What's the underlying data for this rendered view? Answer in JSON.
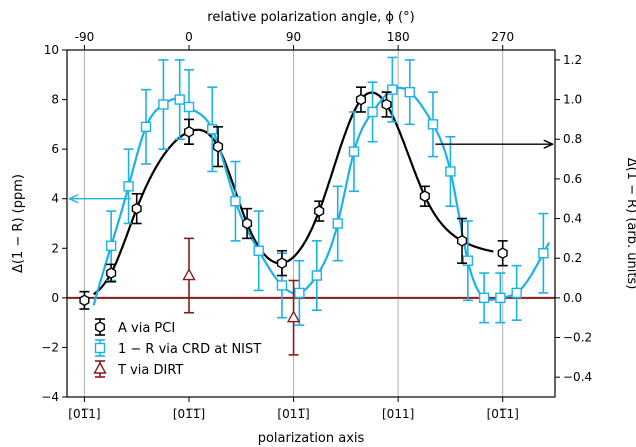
{
  "chart_data": {
    "type": "scatter",
    "title": "",
    "xlabel": "polarization axis",
    "ylabel": "Δ(1 − R) (ppm)",
    "ylabel_right": "Δ(1 − R) (arb. units)",
    "xlabel_top": "relative polarization angle, ϕ (°)",
    "xlim": [
      -105,
      315
    ],
    "ylim": [
      -4,
      10
    ],
    "ylim_right": [
      -0.5,
      1.25
    ],
    "grid": "vertical lines at x = -90, 90, 180, 270",
    "legend_position": "lower-left",
    "bottom_ticks": [
      {
        "x": -90,
        "label": "[01̅1]"
      },
      {
        "x": 0,
        "label": "[01̅1̅]"
      },
      {
        "x": 90,
        "label": "[011̅]"
      },
      {
        "x": 180,
        "label": "[011]"
      },
      {
        "x": 270,
        "label": "[01̅1]"
      }
    ],
    "top_ticks": [
      -90,
      0,
      90,
      180,
      270
    ],
    "left_ticks": [
      -4,
      -2,
      0,
      2,
      4,
      6,
      8,
      10
    ],
    "right_ticks": [
      -0.4,
      -0.2,
      0.0,
      0.2,
      0.4,
      0.6,
      0.8,
      1.0,
      1.2
    ],
    "series": [
      {
        "name": "A via PCI",
        "color": "#000000",
        "marker": "hexagon",
        "axis": "left",
        "x": [
          -90,
          -67,
          -45,
          0,
          25,
          50,
          80,
          112,
          148,
          170,
          203,
          235,
          270
        ],
        "y": [
          -0.1,
          1.0,
          3.6,
          6.7,
          6.1,
          3.0,
          1.4,
          3.5,
          8.0,
          7.8,
          4.1,
          2.3,
          1.8
        ],
        "yerr": [
          0.35,
          0.35,
          0.6,
          0.5,
          0.8,
          0.6,
          0.5,
          0.4,
          0.5,
          0.5,
          0.4,
          0.9,
          0.5
        ]
      },
      {
        "name": "1 − R via CRD at NIST",
        "color": "#1cb2e6",
        "marker": "square",
        "axis": "left",
        "x": [
          -67,
          -52,
          -37,
          -22,
          -8,
          0,
          20,
          40,
          60,
          80,
          95,
          110,
          128,
          142,
          158,
          175,
          190,
          210,
          225,
          240,
          254,
          268,
          282,
          305
        ],
        "y": [
          2.1,
          4.5,
          6.9,
          7.8,
          8.0,
          7.7,
          6.8,
          3.9,
          1.9,
          0.5,
          0.2,
          0.9,
          3.0,
          5.9,
          7.5,
          8.4,
          8.3,
          7.0,
          5.1,
          1.5,
          0.0,
          0.0,
          0.2,
          1.8
        ],
        "yerr": [
          1.4,
          1.5,
          1.5,
          1.8,
          1.6,
          1.5,
          1.7,
          1.6,
          1.6,
          1.3,
          1.3,
          1.4,
          1.5,
          1.6,
          1.2,
          1.3,
          1.3,
          1.3,
          1.4,
          1.6,
          1.0,
          1.0,
          1.1,
          1.6
        ]
      },
      {
        "name": "T via DIRT",
        "color": "#8b1a1a",
        "marker": "triangle",
        "axis": "left",
        "x": [
          0,
          90
        ],
        "y": [
          0.9,
          -0.8
        ],
        "yerr": [
          1.5,
          1.5
        ]
      }
    ],
    "fits": [
      {
        "series": "A via PCI",
        "color": "#000000",
        "x_from": -82,
        "x_to": 262
      },
      {
        "series": "1 − R via CRD at NIST",
        "color": "#1cb2e6",
        "x_from": -82,
        "x_to": 310
      }
    ],
    "zero_line": {
      "series": "T via DIRT",
      "y": 0,
      "color": "#8b1a1a"
    },
    "annotations": [
      {
        "type": "arrow",
        "direction": "left",
        "points_to": "left axis",
        "color": "#1cb2e6",
        "from": {
          "x": -50,
          "y": 4.0
        },
        "to": {
          "x": -103,
          "y": 4.0
        }
      },
      {
        "type": "arrow",
        "direction": "right",
        "points_to": "right axis",
        "color": "#000000",
        "from": {
          "x": 212,
          "y": 6.2
        },
        "to": {
          "x": 313,
          "y": 6.2
        }
      }
    ]
  }
}
